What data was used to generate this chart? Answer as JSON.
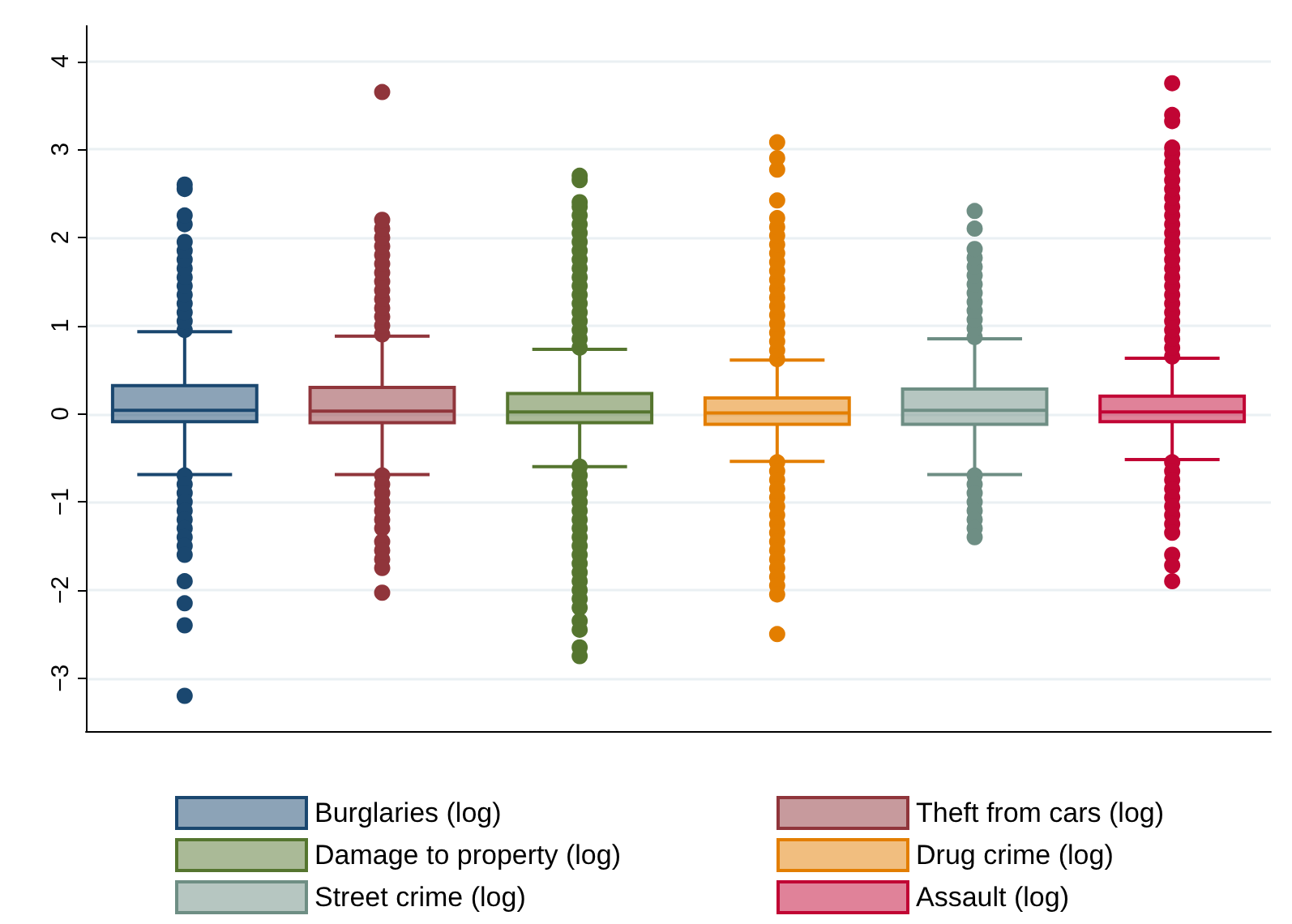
{
  "chart_data": {
    "type": "box",
    "categories": [
      null,
      null,
      null,
      null,
      null,
      null
    ],
    "ylim": [
      -3.6,
      4.4
    ],
    "yticks": [
      -3,
      -2,
      -1,
      0,
      1,
      2,
      3,
      4
    ],
    "grid": "y",
    "legend": "bottom",
    "tick_labels": "y",
    "marker": "circle",
    "series": [
      {
        "name": "Burglaries (log)",
        "color": "#1a476f",
        "boxes": [
          {
            "low": -0.69,
            "q1": -0.09,
            "median": 0.04,
            "q3": 0.32,
            "high": 0.93,
            "outliers": [
              0.95,
              1.05,
              1.15,
              1.25,
              1.35,
              1.45,
              1.55,
              1.65,
              1.75,
              1.85,
              1.95,
              2.15,
              2.25,
              2.55,
              2.6,
              -0.7,
              -0.8,
              -0.9,
              -1.0,
              -1.1,
              -1.2,
              -1.3,
              -1.4,
              -1.5,
              -1.6,
              -1.9,
              -2.15,
              -2.4,
              -3.2
            ]
          },
          null,
          null,
          null,
          null,
          null
        ]
      },
      {
        "name": "Theft from cars (log)",
        "color": "#90353b",
        "boxes": [
          null,
          {
            "low": -0.69,
            "q1": -0.1,
            "median": 0.03,
            "q3": 0.3,
            "high": 0.88,
            "outliers": [
              0.9,
              1.0,
              1.1,
              1.2,
              1.3,
              1.4,
              1.5,
              1.6,
              1.7,
              1.8,
              1.9,
              2.0,
              2.1,
              2.2,
              3.65,
              -0.7,
              -0.8,
              -0.9,
              -1.0,
              -1.1,
              -1.2,
              -1.3,
              -1.45,
              -1.55,
              -1.65,
              -1.75,
              -2.03
            ]
          },
          null,
          null,
          null,
          null
        ]
      },
      {
        "name": "Damage to property (log)",
        "color": "#55752f",
        "boxes": [
          null,
          null,
          {
            "low": -0.6,
            "q1": -0.1,
            "median": 0.02,
            "q3": 0.23,
            "high": 0.73,
            "outliers": [
              0.75,
              0.85,
              0.95,
              1.05,
              1.15,
              1.25,
              1.35,
              1.45,
              1.55,
              1.65,
              1.75,
              1.85,
              1.95,
              2.05,
              2.15,
              2.25,
              2.35,
              2.4,
              2.65,
              2.7,
              -0.6,
              -0.7,
              -0.8,
              -0.9,
              -1.0,
              -1.1,
              -1.2,
              -1.3,
              -1.4,
              -1.5,
              -1.6,
              -1.7,
              -1.8,
              -1.9,
              -2.0,
              -2.1,
              -2.2,
              -2.35,
              -2.45,
              -2.65,
              -2.75
            ]
          },
          null,
          null,
          null
        ]
      },
      {
        "name": "Drug crime (log)",
        "color": "#e37e00",
        "boxes": [
          null,
          null,
          null,
          {
            "low": -0.54,
            "q1": -0.12,
            "median": 0.01,
            "q3": 0.18,
            "high": 0.61,
            "outliers": [
              0.62,
              0.72,
              0.82,
              0.92,
              1.02,
              1.12,
              1.22,
              1.32,
              1.42,
              1.52,
              1.62,
              1.72,
              1.82,
              1.92,
              2.02,
              2.12,
              2.22,
              2.42,
              2.77,
              2.9,
              3.08,
              -0.55,
              -0.65,
              -0.75,
              -0.85,
              -0.95,
              -1.05,
              -1.15,
              -1.25,
              -1.35,
              -1.45,
              -1.55,
              -1.65,
              -1.75,
              -1.85,
              -1.95,
              -2.05,
              -2.5
            ]
          },
          null,
          null
        ]
      },
      {
        "name": "Street crime (log)",
        "color": "#6e8e84",
        "boxes": [
          null,
          null,
          null,
          null,
          {
            "low": -0.69,
            "q1": -0.12,
            "median": 0.04,
            "q3": 0.28,
            "high": 0.85,
            "outliers": [
              0.87,
              0.97,
              1.07,
              1.17,
              1.27,
              1.37,
              1.47,
              1.57,
              1.67,
              1.77,
              1.87,
              2.1,
              2.3,
              -0.7,
              -0.8,
              -0.9,
              -1.0,
              -1.1,
              -1.2,
              -1.3,
              -1.4
            ]
          },
          null
        ]
      },
      {
        "name": "Assault (log)",
        "color": "#c10534",
        "boxes": [
          null,
          null,
          null,
          null,
          null,
          {
            "low": -0.52,
            "q1": -0.09,
            "median": 0.02,
            "q3": 0.2,
            "high": 0.63,
            "outliers": [
              0.65,
              0.75,
              0.85,
              0.95,
              1.05,
              1.15,
              1.25,
              1.35,
              1.45,
              1.55,
              1.65,
              1.75,
              1.85,
              1.95,
              2.05,
              2.15,
              2.25,
              2.35,
              2.45,
              2.55,
              2.65,
              2.75,
              2.85,
              2.95,
              3.02,
              3.32,
              3.39,
              3.75,
              -0.55,
              -0.65,
              -0.75,
              -0.85,
              -0.95,
              -1.05,
              -1.15,
              -1.25,
              -1.35,
              -1.6,
              -1.72,
              -1.9
            ]
          }
        ]
      }
    ]
  }
}
